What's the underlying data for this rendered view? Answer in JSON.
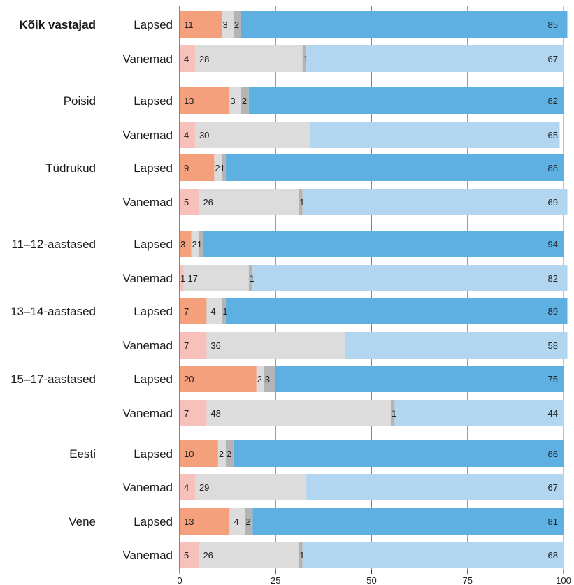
{
  "chart_data": {
    "type": "bar",
    "stacked": true,
    "orientation": "horizontal",
    "xlim": [
      0,
      100
    ],
    "x_ticks": [
      "0",
      "25",
      "50",
      "75",
      "100"
    ],
    "grid": true,
    "colors": {
      "children": [
        "#f4a07c",
        "#dcdcdc",
        "#b4b4b4",
        "#5fb0e2"
      ],
      "parents": [
        "#f7c0ba",
        "#dcdcdc",
        "#b4b4b4",
        "#b2d6ef"
      ]
    },
    "groups": [
      {
        "label": "Kõik vastajad",
        "bold": true,
        "rows": [
          {
            "label": "Lapsed",
            "kind": "children",
            "values": [
              11,
              3,
              2,
              85
            ],
            "labels": [
              "11",
              "3",
              "2",
              "85"
            ]
          },
          {
            "label": "Vanemad",
            "kind": "parents",
            "values": [
              4,
              28,
              1,
              67
            ],
            "labels": [
              "4",
              "28",
              "1",
              "67"
            ]
          }
        ]
      },
      {
        "label": "Poisid",
        "bold": false,
        "rows": [
          {
            "label": "Lapsed",
            "kind": "children",
            "values": [
              13,
              3,
              2,
              82
            ],
            "labels": [
              "13",
              "3",
              "2",
              "82"
            ]
          },
          {
            "label": "Vanemad",
            "kind": "parents",
            "values": [
              4,
              30,
              0,
              65
            ],
            "labels": [
              "4",
              "30",
              "",
              "65"
            ]
          }
        ]
      },
      {
        "label": "Tüdrukud",
        "bold": false,
        "rows": [
          {
            "label": "Lapsed",
            "kind": "children",
            "values": [
              9,
              2,
              1,
              88
            ],
            "labels": [
              "9",
              "21",
              "",
              "88"
            ]
          },
          {
            "label": "Vanemad",
            "kind": "parents",
            "values": [
              5,
              26,
              1,
              69
            ],
            "labels": [
              "5",
              "26",
              "1",
              "69"
            ]
          }
        ]
      },
      {
        "label": "11–12-aastased",
        "bold": false,
        "rows": [
          {
            "label": "Lapsed",
            "kind": "children",
            "values": [
              3,
              2,
              1,
              94
            ],
            "labels": [
              "3",
              "21",
              "",
              "94"
            ]
          },
          {
            "label": "Vanemad",
            "kind": "parents",
            "values": [
              1,
              17,
              1,
              82
            ],
            "labels": [
              "1",
              "17",
              "1",
              "82"
            ]
          }
        ]
      },
      {
        "label": "13–14-aastased",
        "bold": false,
        "rows": [
          {
            "label": "Lapsed",
            "kind": "children",
            "values": [
              7,
              4,
              1,
              89
            ],
            "labels": [
              "7",
              "4",
              "1",
              "89"
            ]
          },
          {
            "label": "Vanemad",
            "kind": "parents",
            "values": [
              7,
              36,
              0,
              58
            ],
            "labels": [
              "7",
              "36",
              "",
              "58"
            ]
          }
        ]
      },
      {
        "label": "15–17-aastased",
        "bold": false,
        "rows": [
          {
            "label": "Lapsed",
            "kind": "children",
            "values": [
              20,
              2,
              3,
              75
            ],
            "labels": [
              "20",
              "2",
              "3",
              "75"
            ]
          },
          {
            "label": "Vanemad",
            "kind": "parents",
            "values": [
              7,
              48,
              1,
              44
            ],
            "labels": [
              "7",
              "48",
              "1",
              "44"
            ]
          }
        ]
      },
      {
        "label": "Eesti",
        "bold": false,
        "rows": [
          {
            "label": "Lapsed",
            "kind": "children",
            "values": [
              10,
              2,
              2,
              86
            ],
            "labels": [
              "10",
              "2",
              "2",
              "86"
            ]
          },
          {
            "label": "Vanemad",
            "kind": "parents",
            "values": [
              4,
              29,
              0,
              67
            ],
            "labels": [
              "4",
              "29",
              "",
              "67"
            ]
          }
        ]
      },
      {
        "label": "Vene",
        "bold": false,
        "rows": [
          {
            "label": "Lapsed",
            "kind": "children",
            "values": [
              13,
              4,
              2,
              81
            ],
            "labels": [
              "13",
              "4",
              "2",
              "81"
            ]
          },
          {
            "label": "Vanemad",
            "kind": "parents",
            "values": [
              5,
              26,
              1,
              68
            ],
            "labels": [
              "5",
              "26",
              "1",
              "68"
            ]
          }
        ]
      }
    ]
  }
}
